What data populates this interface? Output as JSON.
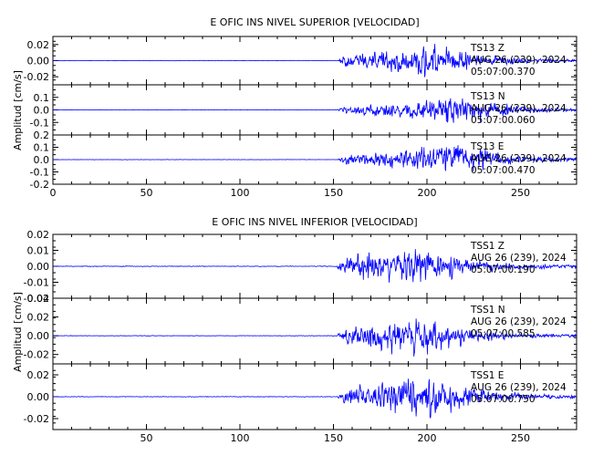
{
  "chart_data": [
    {
      "type": "line",
      "title": "E OFIC INS NIVEL SUPERIOR [VELOCIDAD]",
      "ylabel": "Amplitud [cm/s]",
      "xlim": [
        0,
        280
      ],
      "x_ticks": [
        "0",
        "50",
        "100",
        "150",
        "200",
        "250"
      ],
      "line_color": "#0000ff",
      "panels": [
        {
          "component": "Z",
          "ylim": [
            -0.03,
            0.03
          ],
          "y_ticks": [
            "0.02",
            "0.00",
            "-0.02"
          ],
          "annotations": [
            "TS13 Z",
            "AUG 26 (239), 2024",
            "05:07:00.370"
          ],
          "series": {
            "onset": 152,
            "peak_time": 205,
            "peak_amp": 0.024,
            "pre_noise": 0.0004
          }
        },
        {
          "component": "N",
          "ylim": [
            -0.2,
            0.2
          ],
          "y_ticks": [
            "0.1",
            "0.0",
            "-0.1"
          ],
          "annotations": [
            "TS13 N",
            "AUG 26 (239), 2024",
            "05:07:00.060"
          ],
          "series": {
            "onset": 152,
            "peak_time": 215,
            "peak_amp": 0.15,
            "pre_noise": 0.002
          }
        },
        {
          "component": "E",
          "ylim": [
            -0.2,
            0.2
          ],
          "y_ticks": [
            "0.2",
            "0.1",
            "0.0",
            "-0.1",
            "-0.2"
          ],
          "annotations": [
            "TS13 E",
            "AUG 26 (239), 2024",
            "05:07:00.470"
          ],
          "series": {
            "onset": 152,
            "peak_time": 215,
            "peak_amp": 0.17,
            "pre_noise": 0.002
          }
        }
      ]
    },
    {
      "type": "line",
      "title": "E OFIC INS NIVEL INFERIOR [VELOCIDAD]",
      "ylabel": "Amplitud [cm/s]",
      "xlim": [
        0,
        280
      ],
      "x_ticks": [
        "50",
        "100",
        "150",
        "200",
        "250"
      ],
      "line_color": "#0000ff",
      "panels": [
        {
          "component": "Z",
          "ylim": [
            -0.02,
            0.02
          ],
          "y_ticks": [
            "0.02",
            "0.01",
            "0.00",
            "-0.01",
            "-0.02"
          ],
          "annotations": [
            "TSS1 Z",
            "AUG 26 (239), 2024",
            "05:07:00.190"
          ],
          "series": {
            "onset": 152,
            "peak_time": 195,
            "peak_amp": 0.016,
            "pre_noise": 0.0003
          }
        },
        {
          "component": "N",
          "ylim": [
            -0.03,
            0.04
          ],
          "y_ticks": [
            "0.04",
            "0.02",
            "0.00",
            "-0.02"
          ],
          "annotations": [
            "TSS1 N",
            "AUG 26 (239), 2024",
            "05:07:00.585"
          ],
          "series": {
            "onset": 152,
            "peak_time": 195,
            "peak_amp": 0.025,
            "pre_noise": 0.0004
          }
        },
        {
          "component": "E",
          "ylim": [
            -0.03,
            0.03
          ],
          "y_ticks": [
            "0.02",
            "0.00",
            "-0.02"
          ],
          "annotations": [
            "TSS1 E",
            "AUG 26 (239), 2024",
            "05:07:00.750"
          ],
          "series": {
            "onset": 152,
            "peak_time": 200,
            "peak_amp": 0.024,
            "pre_noise": 0.0004
          }
        }
      ]
    }
  ]
}
